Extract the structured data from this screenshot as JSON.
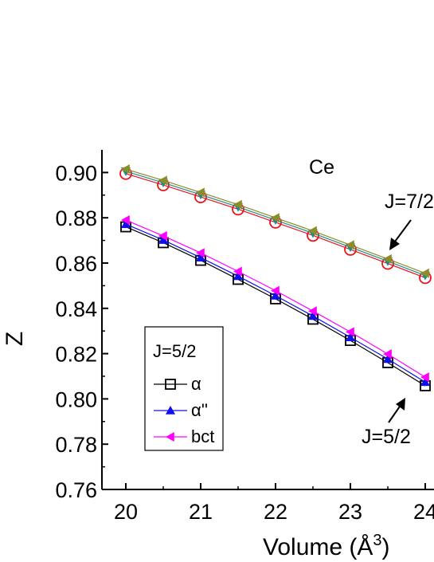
{
  "chart_data": {
    "type": "line",
    "title": "Ce",
    "xlabel": "Volume (Å",
    "xlabel_sup": "3",
    "xlabel_close": ")",
    "ylabel": "Z",
    "xlim": [
      19.6,
      24.1
    ],
    "ylim": [
      0.76,
      0.91
    ],
    "x_ticks": [
      "20",
      "21",
      "22",
      "23",
      "24"
    ],
    "y_ticks": [
      "0.76",
      "0.78",
      "0.80",
      "0.82",
      "0.84",
      "0.86",
      "0.88",
      "0.90"
    ],
    "x": [
      20,
      20.5,
      21,
      21.5,
      22,
      22.5,
      23,
      23.5,
      24
    ],
    "groups": [
      {
        "label": "J=7/2",
        "series": [
          {
            "marker": "circle-open",
            "color": "#e8141e",
            "values": [
              0.8995,
              0.8945,
              0.8892,
              0.8838,
              0.878,
              0.8722,
              0.866,
              0.8598,
              0.8535
            ]
          },
          {
            "marker": "triangle-down",
            "color": "#1f8c8c",
            "values": [
              0.9005,
              0.8955,
              0.8902,
              0.8848,
              0.879,
              0.8732,
              0.867,
              0.8608,
              0.8545
            ]
          },
          {
            "marker": "triangle-left",
            "color": "#8c8c28",
            "values": [
              0.9015,
              0.8965,
              0.8912,
              0.8858,
              0.88,
              0.8742,
              0.868,
              0.8618,
              0.8555
            ]
          }
        ]
      },
      {
        "label": "J=5/2",
        "series": [
          {
            "name": "α",
            "marker": "square-open",
            "color": "#000000",
            "values": [
              0.876,
              0.869,
              0.8612,
              0.8528,
              0.8442,
              0.8352,
              0.8258,
              0.816,
              0.8058
            ]
          },
          {
            "name": "α''",
            "marker": "triangle-up",
            "color": "#1010e8",
            "values": [
              0.8772,
              0.8702,
              0.8624,
              0.8542,
              0.8456,
              0.8366,
              0.8272,
              0.8176,
              0.8074
            ]
          },
          {
            "name": "bct",
            "marker": "triangle-left",
            "color": "#ff00ff",
            "values": [
              0.879,
              0.872,
              0.8645,
              0.8563,
              0.8478,
              0.8388,
              0.8296,
              0.8198,
              0.8096
            ]
          }
        ]
      }
    ],
    "legend": {
      "title": "J=5/2",
      "position": "bottom-left"
    },
    "annotations": [
      "J=7/2",
      "J=5/2"
    ]
  }
}
